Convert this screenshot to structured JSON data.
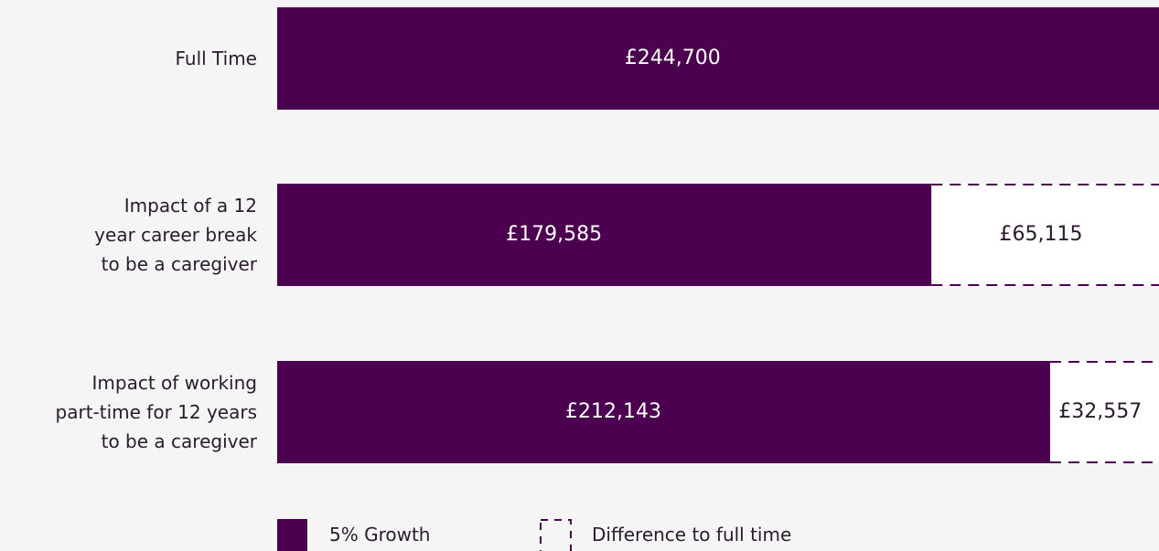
{
  "chart_data": {
    "type": "stacked-barh",
    "categories": [
      "Full Time",
      "Impact of a 12\nyear career break\nto be a caregiver",
      "Impact of working\npart-time for 12 years\nto be a caregiver"
    ],
    "series": [
      {
        "name": "5% Growth",
        "color": "#4b0050",
        "values": [
          244700,
          179585,
          212143
        ],
        "value_labels": [
          "£244,700",
          "£179,585",
          "£212,143"
        ]
      },
      {
        "name": "Difference to full time",
        "color": "#ffffff",
        "values": [
          null,
          65115,
          32557
        ],
        "value_labels": [
          null,
          "£65,115",
          "£32,557"
        ]
      }
    ],
    "legend": "bottom-left"
  }
}
